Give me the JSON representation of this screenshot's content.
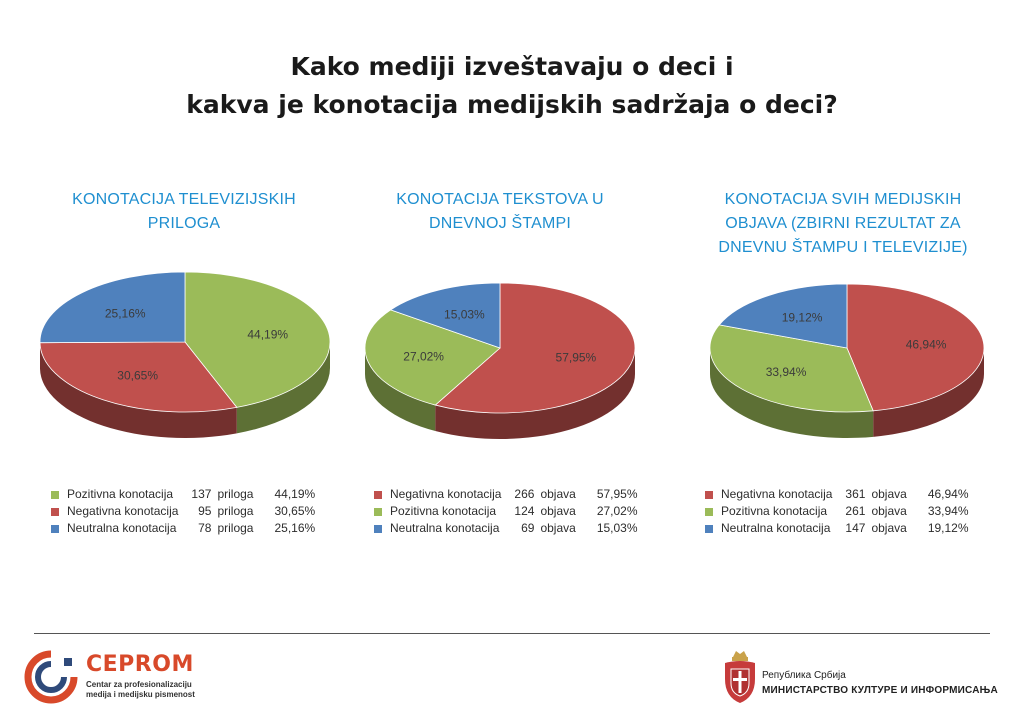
{
  "title": {
    "line1": "Kako mediji izveštavaju o deci i",
    "line2": "kakva je konotacija medijskih sadržaja o deci?"
  },
  "colors": {
    "green": "#9bbb59",
    "red": "#c0504d",
    "blue": "#4f81bd",
    "heading": "#1f8fd0"
  },
  "chart_data": [
    {
      "type": "pie",
      "title_lines": [
        "KONOTACIJA TELEVIZIJSKIH",
        "PRILOGA"
      ],
      "start_angle": 0,
      "slices": [
        {
          "name": "Pozitivna konotacija",
          "count": "137",
          "unit": "priloga",
          "value": 44.19,
          "label": "44,19%",
          "pct": "44,19%",
          "color": "green"
        },
        {
          "name": "Negativna konotacija",
          "count": "95",
          "unit": "priloga",
          "value": 30.65,
          "label": "30,65%",
          "pct": "30,65%",
          "color": "red"
        },
        {
          "name": "Neutralna konotacija",
          "count": "78",
          "unit": "priloga",
          "value": 25.16,
          "label": "25,16%",
          "pct": "25,16%",
          "color": "blue"
        }
      ]
    },
    {
      "type": "pie",
      "title_lines": [
        "KONOTACIJA TEKSTOVA U",
        "DNEVNOJ ŠTAMPI"
      ],
      "start_angle": 0,
      "slices": [
        {
          "name": "Negativna konotacija",
          "count": "266",
          "unit": "objava",
          "value": 57.95,
          "label": "57,95%",
          "pct": "57,95%",
          "color": "red"
        },
        {
          "name": "Pozitivna konotacija",
          "count": "124",
          "unit": "objava",
          "value": 27.02,
          "label": "27,02%",
          "pct": "27,02%",
          "color": "green"
        },
        {
          "name": "Neutralna konotacija",
          "count": "69",
          "unit": "objava",
          "value": 15.03,
          "label": "15,03%",
          "pct": "15,03%",
          "color": "blue"
        }
      ]
    },
    {
      "type": "pie",
      "title_lines": [
        "KONOTACIJA SVIH MEDIJSKIH",
        "OBJAVA (ZBIRNI REZULTAT ZA",
        "DNEVNU ŠTAMPU I TELEVIZIJE)"
      ],
      "start_angle": 0,
      "slices": [
        {
          "name": "Negativna konotacija",
          "count": "361",
          "unit": "objava",
          "value": 46.94,
          "label": "46,94%",
          "pct": "46,94%",
          "color": "red"
        },
        {
          "name": "Pozitivna konotacija",
          "count": "261",
          "unit": "objava",
          "value": 33.94,
          "label": "33,94%",
          "pct": "33,94%",
          "color": "green"
        },
        {
          "name": "Neutralna konotacija",
          "count": "147",
          "unit": "objava",
          "value": 19.12,
          "label": "19,12%",
          "pct": "19,12%",
          "color": "blue"
        }
      ]
    }
  ],
  "footer": {
    "cep_name": "CEPROM",
    "cep_sub1": "Centar za profesionalizaciju",
    "cep_sub2": "medija i medijsku pismenost",
    "ministry_line1": "Република Србија",
    "ministry_line2": "МИНИСТАРСТВО КУЛТУРЕ И ИНФОРМИСАЊА",
    "coat_icon": "coat-of-arms-icon",
    "cep_logo_icon": "ceprom-logo-icon"
  }
}
